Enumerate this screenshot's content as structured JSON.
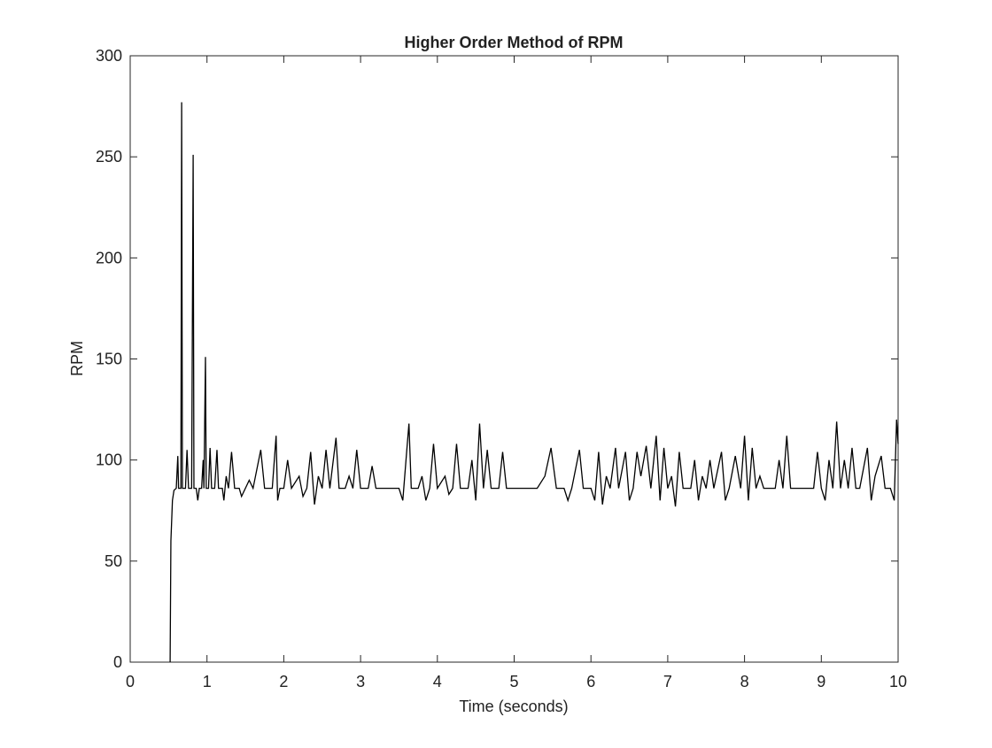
{
  "chart_data": {
    "type": "line",
    "title": "Higher Order Method of RPM",
    "x_label": "Time (seconds)",
    "y_label": "RPM",
    "color": "#000000",
    "x": [
      0.52,
      0.53,
      0.55,
      0.57,
      0.6,
      0.62,
      0.63,
      0.66,
      0.67,
      0.68,
      0.72,
      0.74,
      0.76,
      0.8,
      0.82,
      0.83,
      0.86,
      0.88,
      0.9,
      0.93,
      0.95,
      0.96,
      0.98,
      0.99,
      1.02,
      1.04,
      1.06,
      1.1,
      1.13,
      1.15,
      1.2,
      1.22,
      1.25,
      1.28,
      1.32,
      1.36,
      1.42,
      1.45,
      1.5,
      1.55,
      1.6,
      1.7,
      1.75,
      1.85,
      1.9,
      1.92,
      1.95,
      2.0,
      2.05,
      2.1,
      2.2,
      2.25,
      2.3,
      2.35,
      2.4,
      2.45,
      2.5,
      2.55,
      2.6,
      2.68,
      2.72,
      2.8,
      2.85,
      2.9,
      2.95,
      3.0,
      3.1,
      3.15,
      3.2,
      3.3,
      3.4,
      3.5,
      3.55,
      3.6,
      3.63,
      3.66,
      3.75,
      3.8,
      3.85,
      3.9,
      3.95,
      4.0,
      4.1,
      4.15,
      4.2,
      4.25,
      4.3,
      4.4,
      4.45,
      4.5,
      4.55,
      4.6,
      4.65,
      4.7,
      4.8,
      4.85,
      4.9,
      5.0,
      5.1,
      5.2,
      5.3,
      5.4,
      5.48,
      5.55,
      5.65,
      5.7,
      5.75,
      5.85,
      5.9,
      6.0,
      6.05,
      6.1,
      6.15,
      6.2,
      6.25,
      6.32,
      6.36,
      6.45,
      6.5,
      6.55,
      6.6,
      6.65,
      6.72,
      6.78,
      6.85,
      6.9,
      6.95,
      7.0,
      7.05,
      7.1,
      7.15,
      7.2,
      7.3,
      7.35,
      7.4,
      7.45,
      7.5,
      7.55,
      7.6,
      7.7,
      7.75,
      7.8,
      7.88,
      7.95,
      8.0,
      8.05,
      8.1,
      8.15,
      8.2,
      8.25,
      8.3,
      8.4,
      8.45,
      8.5,
      8.55,
      8.6,
      8.7,
      8.8,
      8.9,
      8.95,
      9.0,
      9.05,
      9.1,
      9.15,
      9.2,
      9.25,
      9.3,
      9.35,
      9.4,
      9.45,
      9.5,
      9.6,
      9.65,
      9.7,
      9.78,
      9.83,
      9.9,
      9.95,
      9.98,
      10.0
    ],
    "values": [
      0,
      60,
      80,
      85,
      86,
      102,
      86,
      86,
      277,
      86,
      86,
      105,
      86,
      86,
      251,
      86,
      86,
      80,
      86,
      86,
      100,
      86,
      151,
      86,
      86,
      106,
      86,
      86,
      105,
      86,
      86,
      80,
      92,
      86,
      104,
      86,
      86,
      82,
      86,
      90,
      86,
      105,
      86,
      86,
      112,
      80,
      86,
      86,
      100,
      86,
      92,
      82,
      86,
      104,
      78,
      92,
      86,
      105,
      86,
      111,
      86,
      86,
      92,
      86,
      105,
      86,
      86,
      97,
      86,
      86,
      86,
      86,
      80,
      104,
      118,
      86,
      86,
      92,
      80,
      86,
      108,
      86,
      92,
      83,
      86,
      108,
      86,
      86,
      100,
      80,
      118,
      86,
      105,
      86,
      86,
      104,
      86,
      86,
      86,
      86,
      86,
      92,
      106,
      86,
      86,
      80,
      86,
      105,
      86,
      86,
      80,
      104,
      78,
      92,
      86,
      106,
      86,
      104,
      80,
      86,
      104,
      92,
      107,
      86,
      112,
      80,
      106,
      86,
      92,
      77,
      104,
      86,
      86,
      100,
      80,
      92,
      86,
      100,
      86,
      104,
      80,
      86,
      102,
      86,
      112,
      80,
      106,
      86,
      92,
      86,
      86,
      86,
      100,
      86,
      112,
      86,
      86,
      86,
      86,
      104,
      86,
      80,
      100,
      86,
      119,
      86,
      100,
      86,
      106,
      86,
      86,
      106,
      80,
      92,
      102,
      86,
      86,
      80,
      120,
      108
    ],
    "xlim": [
      0,
      10
    ],
    "xticks": [
      0,
      1,
      2,
      3,
      4,
      5,
      6,
      7,
      8,
      9,
      10
    ],
    "ylim": [
      0,
      300
    ],
    "yticks": [
      0,
      50,
      100,
      150,
      200,
      250,
      300
    ],
    "grid": false
  }
}
